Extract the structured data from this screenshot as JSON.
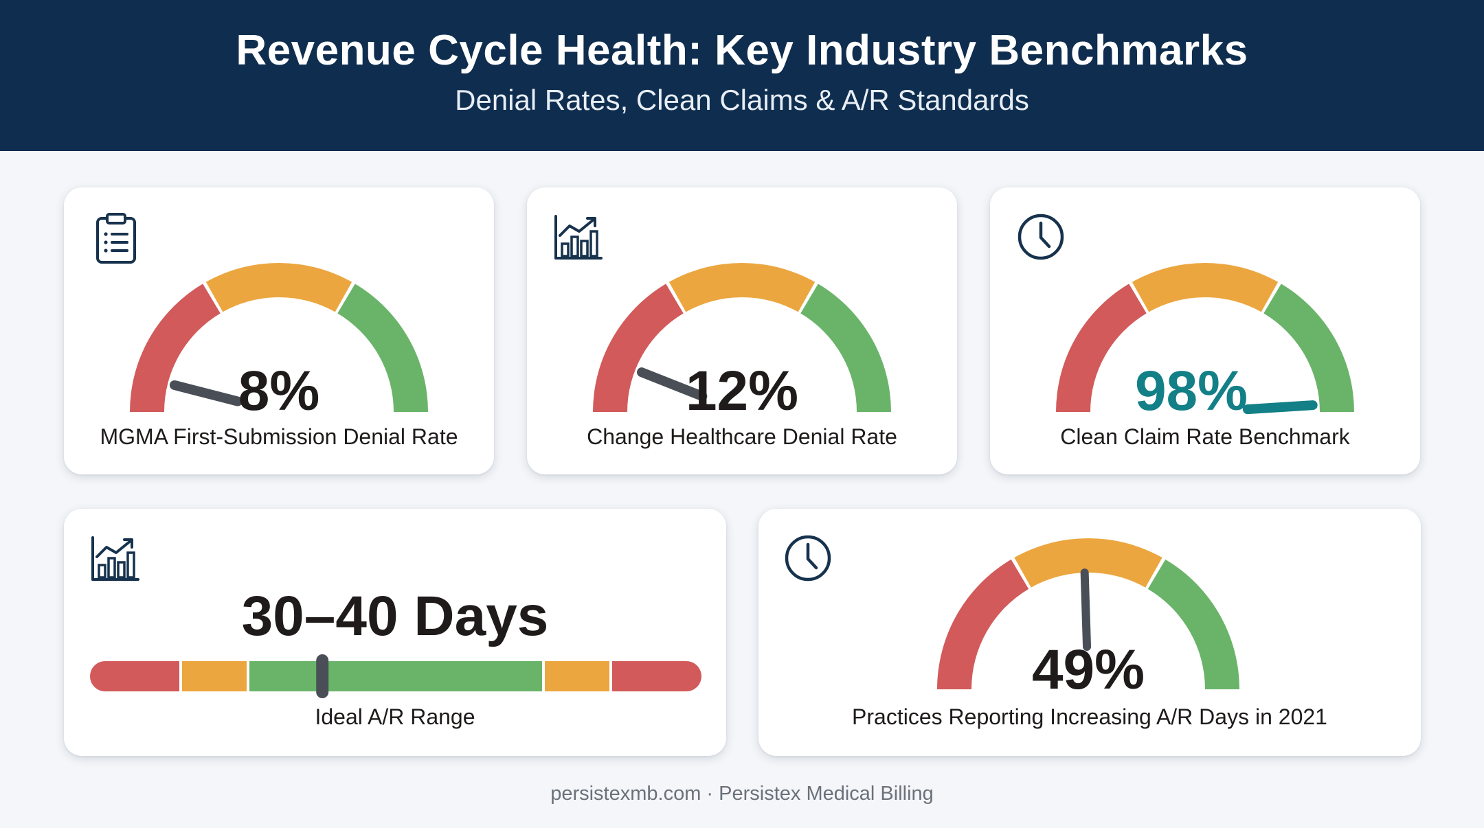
{
  "header": {
    "title": "Revenue Cycle Health: Key Industry Benchmarks",
    "subtitle": "Denial Rates, Clean Claims & A/R Standards"
  },
  "colors": {
    "header_bg": "#0f2e4f",
    "red": "#d25a5a",
    "orange": "#eca63f",
    "green": "#6ab46a",
    "needle": "#4a4f57",
    "teal": "#137f86",
    "icon": "#17324d"
  },
  "cards": {
    "mgma": {
      "icon": "clipboard-list-icon",
      "value": "8%",
      "label": "MGMA First-Submission Denial Rate",
      "needle_percent": 8
    },
    "change": {
      "icon": "bar-chart-trend-icon",
      "value": "12%",
      "label": "Change Healthcare Denial Rate",
      "needle_percent": 12
    },
    "clean": {
      "icon": "clock-icon",
      "value": "98%",
      "label": "Clean Claim Rate Benchmark",
      "needle_percent": 98
    },
    "ar_range": {
      "icon": "bar-chart-trend-icon",
      "value": "30–40 Days",
      "label": "Ideal A/R Range",
      "marker_fraction": 0.38
    },
    "practices": {
      "icon": "clock-icon",
      "value": "49%",
      "label": "Practices Reporting Increasing A/R Days in 2021",
      "needle_percent": 49
    }
  },
  "footer": {
    "text": "persistexmb.com · Persistex Medical Billing"
  }
}
